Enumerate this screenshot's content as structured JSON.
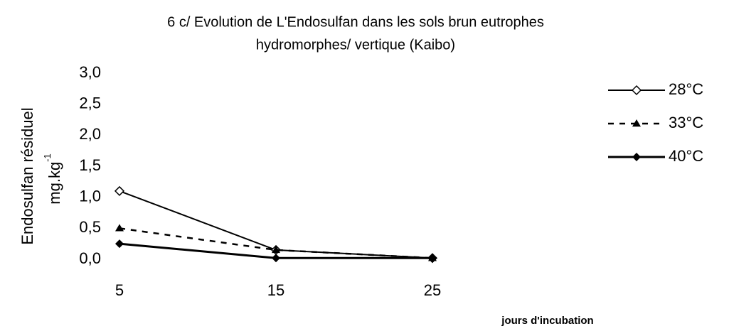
{
  "chart_data": {
    "type": "line",
    "title": [
      "6 c/ Evolution de L'Endosulfan dans les sols brun eutrophes",
      "hydromorphes/ vertique (Kaibo)"
    ],
    "ylabel": "Endosulfan résiduel",
    "yunit": "mg.kg",
    "yunit_exp": "-1",
    "xlabel": "jours d'incubation",
    "x": [
      5,
      15,
      25
    ],
    "xlim": [
      5,
      25
    ],
    "xticks": [
      5,
      15,
      25
    ],
    "ylim": [
      0,
      3
    ],
    "yticks": [
      {
        "value": 0,
        "label": "0,0"
      },
      {
        "value": 0.5,
        "label": "0,5"
      },
      {
        "value": 1,
        "label": "1,0"
      },
      {
        "value": 1.5,
        "label": "1,5"
      },
      {
        "value": 2,
        "label": "2,0"
      },
      {
        "value": 2.5,
        "label": "2,5"
      },
      {
        "value": 3,
        "label": "3,0"
      }
    ],
    "legend": "right",
    "series": [
      {
        "name": "28°C",
        "color": "#000000",
        "line_style": "solid",
        "line_width": 2,
        "marker": "open-diamond",
        "values": [
          1.1,
          0.15,
          0.02
        ]
      },
      {
        "name": "33°C",
        "color": "#000000",
        "line_style": "dashed",
        "line_width": 2.5,
        "marker": "triangle",
        "values": [
          0.5,
          0.15,
          0.02
        ]
      },
      {
        "name": "40°C",
        "color": "#000000",
        "line_style": "solid",
        "line_width": 3,
        "marker": "diamond",
        "values": [
          0.25,
          0.02,
          0.02
        ]
      }
    ]
  }
}
